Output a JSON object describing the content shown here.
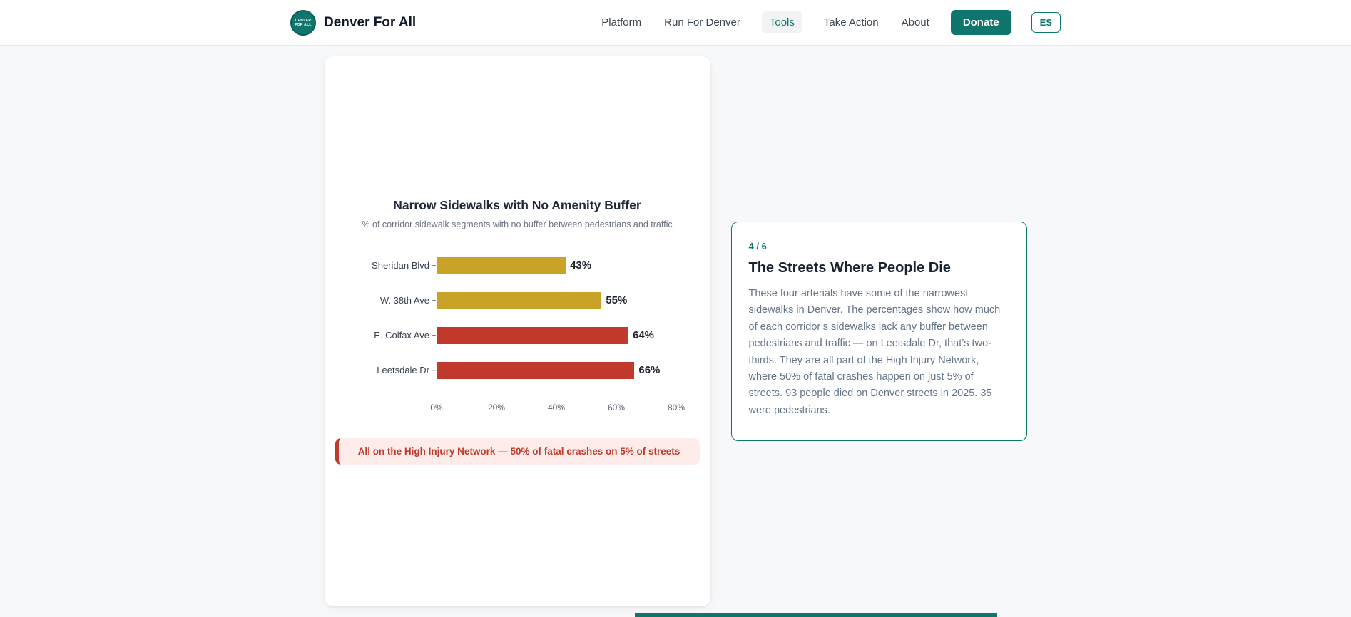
{
  "brand": {
    "name": "Denver For All",
    "logo_text": "Denver For All"
  },
  "nav": {
    "items": [
      {
        "label": "Platform",
        "active": false
      },
      {
        "label": "Run For Denver",
        "active": false
      },
      {
        "label": "Tools",
        "active": true
      },
      {
        "label": "Take Action",
        "active": false
      },
      {
        "label": "About",
        "active": false
      }
    ],
    "donate_label": "Donate",
    "lang_label": "ES"
  },
  "colors": {
    "accent_teal": "#0f766e",
    "bar_gold": "#c9a227",
    "bar_red": "#c0392b",
    "annotation_bg": "#fdecea"
  },
  "chart_data": {
    "type": "bar",
    "orientation": "horizontal",
    "title": "Narrow Sidewalks with No Amenity Buffer",
    "subtitle": "% of corridor sidewalk segments with no buffer between pedestrians and traffic",
    "categories": [
      "Sheridan Blvd",
      "W. 38th Ave",
      "E. Colfax Ave",
      "Leetsdale Dr"
    ],
    "values": [
      43,
      55,
      64,
      66
    ],
    "value_labels": [
      "43%",
      "55%",
      "64%",
      "66%"
    ],
    "bar_colors": [
      "#c9a227",
      "#c9a227",
      "#c0392b",
      "#c0392b"
    ],
    "xlim": [
      0,
      80
    ],
    "x_ticks": [
      "0%",
      "20%",
      "40%",
      "60%",
      "80%"
    ],
    "grid": false,
    "legend": "none"
  },
  "annotation": {
    "text": "All on the High Injury Network — 50% of fatal crashes on 5% of streets"
  },
  "step_card": {
    "progress": "4 / 6",
    "title": "The Streets Where People Die",
    "body": "These four arterials have some of the narrowest sidewalks in Denver. The percentages show how much of each corridor’s sidewalks lack any buffer between pedestrians and traffic — on Leetsdale Dr, that’s two-thirds. They are all part of the High Injury Network, where 50% of fatal crashes happen on just 5% of streets. 93 people died on Denver streets in 2025. 35 were pedestrians."
  }
}
